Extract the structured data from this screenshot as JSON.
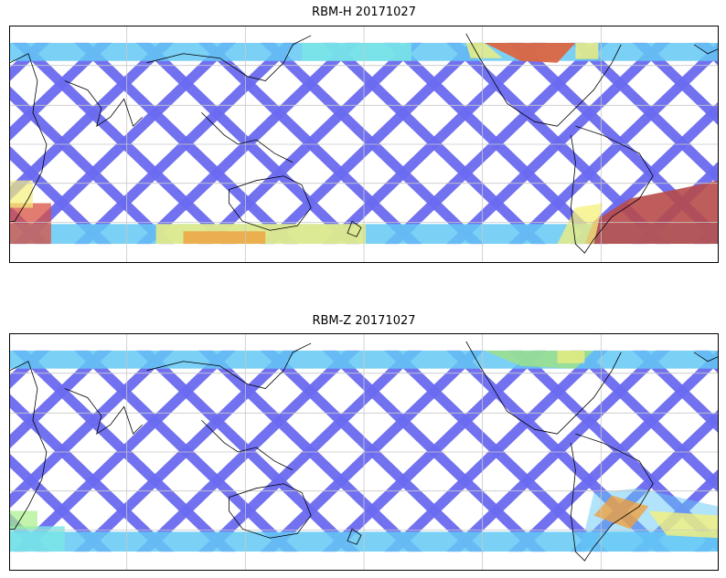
{
  "panels": [
    {
      "title": "RBM-H 20171027",
      "hotspots": [
        {
          "where": "south-atlantic",
          "color": "#b84a4a"
        },
        {
          "where": "north-pacific-east",
          "color": "#e0603a"
        },
        {
          "where": "southern-ocean-west",
          "color": "#f07a3a"
        },
        {
          "where": "southern-ocean-band",
          "color": "#f5e04a"
        }
      ]
    },
    {
      "title": "RBM-Z 20171027",
      "hotspots": [
        {
          "where": "south-atlantic",
          "color": "#f0a040"
        },
        {
          "where": "north-pacific-east",
          "color": "#9be08a"
        },
        {
          "where": "southern-ocean-band",
          "color": "#7ad6e8"
        }
      ]
    }
  ],
  "colors": {
    "low": "#6a6af0",
    "mid": "#64c8f5",
    "cyan": "#7ae6e6",
    "green": "#a8f08a",
    "yellow": "#f5f07a",
    "orange": "#f0a040",
    "red": "#d85040",
    "gridline": "#c8c8c8",
    "coast": "#000000"
  }
}
